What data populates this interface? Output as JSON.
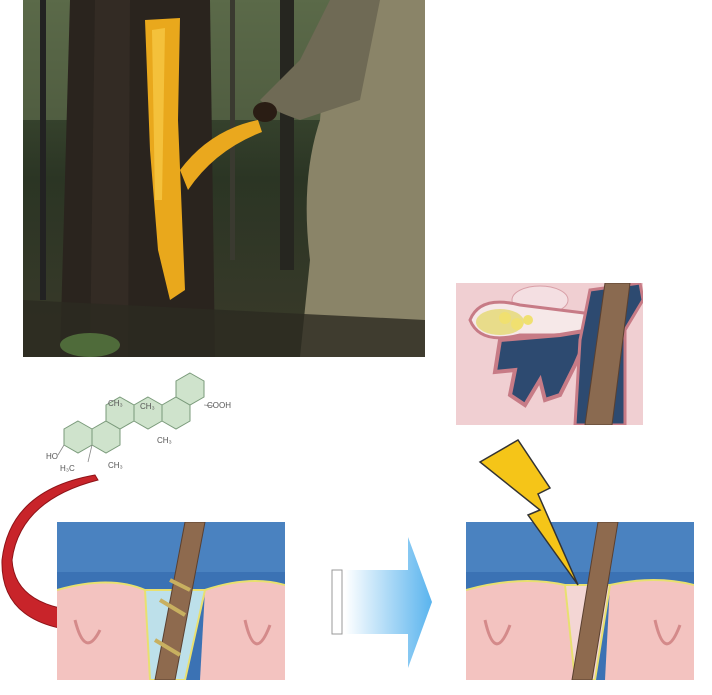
{
  "structure": {
    "labels": [
      "CH₃",
      "CH₃",
      "COOH",
      "CH₃",
      "HO",
      "H₃C",
      "CH₃"
    ]
  }
}
